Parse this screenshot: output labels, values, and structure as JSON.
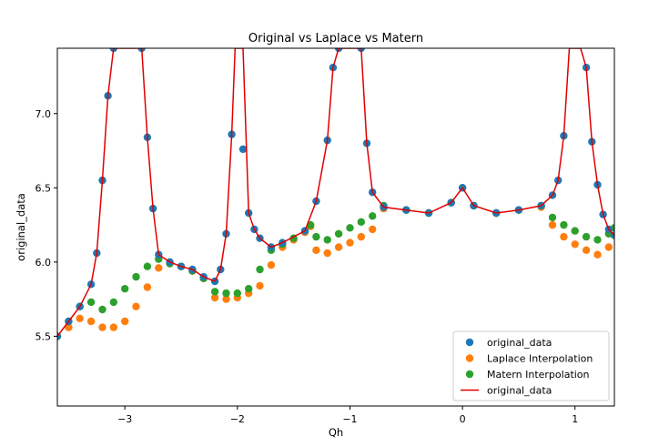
{
  "chart_data": {
    "type": "scatter",
    "title": "Original vs Laplace vs Matern",
    "xlabel": "Qh",
    "ylabel": "original_data",
    "xlim": [
      -3.6,
      1.35
    ],
    "ylim": [
      5.03,
      7.44
    ],
    "xticks": [
      -3,
      -2,
      -1,
      0,
      1
    ],
    "xtick_labels": [
      "−3",
      "−2",
      "−1",
      "0",
      "1"
    ],
    "yticks": [
      5.5,
      6.0,
      6.5,
      7.0
    ],
    "ytick_labels": [
      "5.5",
      "6.0",
      "6.5",
      "7.0"
    ],
    "legend_position": "lower-right",
    "grid": false,
    "series": [
      {
        "name": "original_data",
        "kind": "scatter",
        "color": "#1f77b4",
        "x": [
          -3.6,
          -3.5,
          -3.4,
          -3.3,
          -3.25,
          -3.2,
          -3.15,
          -3.1,
          -2.85,
          -2.8,
          -2.75,
          -2.7,
          -2.6,
          -2.5,
          -2.4,
          -2.3,
          -2.2,
          -2.15,
          -2.1,
          -2.05,
          -1.95,
          -1.9,
          -1.85,
          -1.8,
          -1.7,
          -1.6,
          -1.4,
          -1.3,
          -1.2,
          -1.15,
          -1.1,
          -0.9,
          -0.85,
          -0.8,
          -0.7,
          -0.5,
          -0.3,
          -0.1,
          0.0,
          0.1,
          0.3,
          0.5,
          0.7,
          0.8,
          0.85,
          0.9,
          1.1,
          1.15,
          1.2,
          1.25,
          1.3,
          1.35
        ],
        "y": [
          5.5,
          5.6,
          5.7,
          5.85,
          6.06,
          6.55,
          7.12,
          7.44,
          7.44,
          6.84,
          6.36,
          6.05,
          6.0,
          5.97,
          5.95,
          5.9,
          5.87,
          5.95,
          6.19,
          6.86,
          6.76,
          6.33,
          6.22,
          6.16,
          6.1,
          6.13,
          6.21,
          6.41,
          6.82,
          7.31,
          7.44,
          7.44,
          6.8,
          6.47,
          6.37,
          6.35,
          6.33,
          6.4,
          6.5,
          6.38,
          6.33,
          6.35,
          6.38,
          6.45,
          6.55,
          6.85,
          7.31,
          6.81,
          6.52,
          6.32,
          6.22,
          6.18
        ]
      },
      {
        "name": "Laplace Interpolation",
        "kind": "scatter",
        "color": "#ff7f0e",
        "x": [
          -3.6,
          -3.5,
          -3.4,
          -3.3,
          -3.2,
          -3.1,
          -3.0,
          -2.9,
          -2.8,
          -2.7,
          -2.6,
          -2.5,
          -2.4,
          -2.3,
          -2.2,
          -2.1,
          -2.0,
          -1.9,
          -1.8,
          -1.7,
          -1.6,
          -1.5,
          -1.4,
          -1.35,
          -1.3,
          -1.2,
          -1.1,
          -1.0,
          -0.9,
          -0.8,
          -0.7,
          -0.5,
          -0.3,
          -0.1,
          0.0,
          0.1,
          0.3,
          0.5,
          0.7,
          0.8,
          0.9,
          1.0,
          1.1,
          1.2,
          1.3,
          1.35
        ],
        "y": [
          5.5,
          5.56,
          5.62,
          5.6,
          5.56,
          5.56,
          5.6,
          5.7,
          5.83,
          5.96,
          5.99,
          5.97,
          5.94,
          5.89,
          5.76,
          5.75,
          5.76,
          5.79,
          5.84,
          5.98,
          6.1,
          6.15,
          6.2,
          6.24,
          6.08,
          6.06,
          6.1,
          6.13,
          6.17,
          6.22,
          6.36,
          6.35,
          6.33,
          6.4,
          6.5,
          6.38,
          6.33,
          6.35,
          6.37,
          6.25,
          6.17,
          6.12,
          6.08,
          6.05,
          6.1,
          6.18
        ]
      },
      {
        "name": "Matern Interpolation",
        "kind": "scatter",
        "color": "#2ca02c",
        "x": [
          -3.6,
          -3.5,
          -3.4,
          -3.3,
          -3.2,
          -3.1,
          -3.0,
          -2.9,
          -2.8,
          -2.7,
          -2.6,
          -2.5,
          -2.4,
          -2.3,
          -2.2,
          -2.1,
          -2.0,
          -1.9,
          -1.8,
          -1.7,
          -1.6,
          -1.5,
          -1.4,
          -1.35,
          -1.3,
          -1.2,
          -1.1,
          -1.0,
          -0.9,
          -0.8,
          -0.7,
          -0.5,
          -0.3,
          -0.1,
          0.0,
          0.1,
          0.3,
          0.5,
          0.7,
          0.8,
          0.9,
          1.0,
          1.1,
          1.2,
          1.3,
          1.35
        ],
        "y": [
          5.5,
          5.6,
          5.7,
          5.73,
          5.68,
          5.73,
          5.82,
          5.9,
          5.97,
          6.02,
          5.99,
          5.97,
          5.94,
          5.89,
          5.8,
          5.79,
          5.79,
          5.82,
          5.95,
          6.08,
          6.12,
          6.16,
          6.21,
          6.25,
          6.17,
          6.15,
          6.19,
          6.23,
          6.27,
          6.31,
          6.38,
          6.35,
          6.33,
          6.4,
          6.5,
          6.38,
          6.33,
          6.35,
          6.38,
          6.3,
          6.25,
          6.21,
          6.17,
          6.15,
          6.19,
          6.23
        ]
      },
      {
        "name": "original_data",
        "kind": "line",
        "color": "#e00000",
        "x": [
          -3.6,
          -3.5,
          -3.4,
          -3.3,
          -3.25,
          -3.2,
          -3.15,
          -3.1,
          -3.05,
          -2.9,
          -2.85,
          -2.8,
          -2.75,
          -2.7,
          -2.6,
          -2.5,
          -2.4,
          -2.3,
          -2.2,
          -2.15,
          -2.1,
          -2.05,
          -2.02,
          -1.95,
          -1.9,
          -1.85,
          -1.8,
          -1.7,
          -1.6,
          -1.4,
          -1.3,
          -1.2,
          -1.15,
          -1.1,
          -1.05,
          -0.95,
          -0.9,
          -0.85,
          -0.8,
          -0.7,
          -0.5,
          -0.3,
          -0.1,
          0.0,
          0.1,
          0.3,
          0.5,
          0.7,
          0.8,
          0.85,
          0.9,
          0.95,
          1.05,
          1.1,
          1.15,
          1.2,
          1.25,
          1.3,
          1.35
        ],
        "y": [
          5.5,
          5.6,
          5.7,
          5.85,
          6.06,
          6.55,
          7.12,
          7.44,
          7.44,
          7.44,
          7.44,
          6.84,
          6.36,
          6.05,
          6.0,
          5.97,
          5.95,
          5.9,
          5.87,
          5.95,
          6.19,
          6.86,
          7.44,
          7.44,
          6.33,
          6.22,
          6.16,
          6.1,
          6.13,
          6.21,
          6.41,
          6.82,
          7.31,
          7.44,
          7.44,
          7.44,
          7.44,
          6.8,
          6.47,
          6.37,
          6.35,
          6.33,
          6.4,
          6.5,
          6.38,
          6.33,
          6.35,
          6.38,
          6.45,
          6.55,
          6.85,
          7.44,
          7.44,
          7.31,
          6.81,
          6.52,
          6.32,
          6.22,
          6.18
        ]
      }
    ]
  }
}
